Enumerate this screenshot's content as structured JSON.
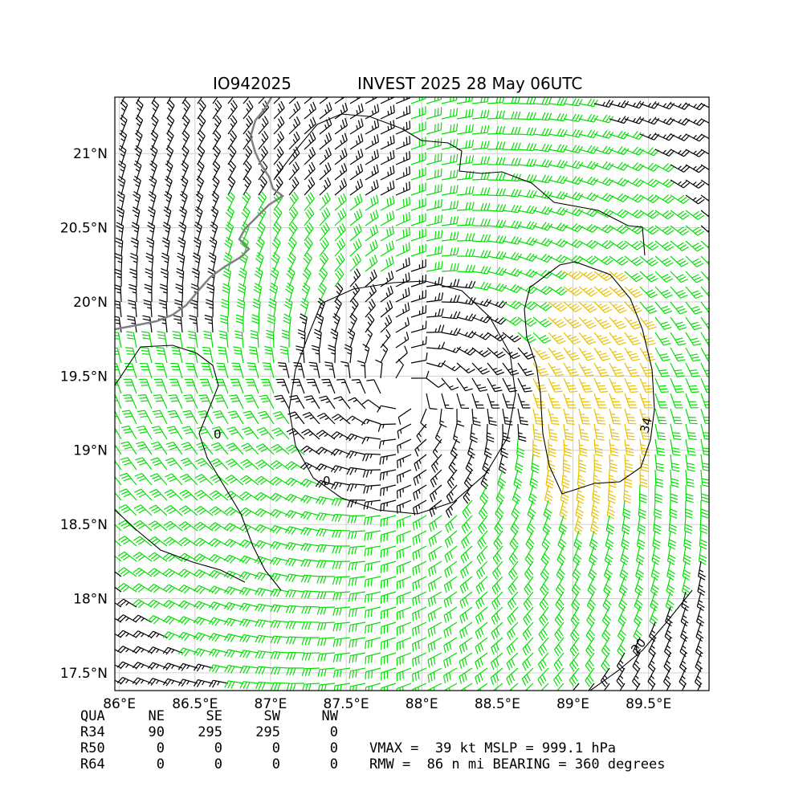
{
  "title": {
    "storm_id": "IO942025",
    "description": "INVEST 2025 28 May 06UTC"
  },
  "map": {
    "lon_range": [
      85.97,
      89.9
    ],
    "lat_range": [
      17.38,
      21.38
    ],
    "x_ticks": [
      "86°E",
      "86.5°E",
      "87°E",
      "87.5°E",
      "88°E",
      "88.5°E",
      "89°E",
      "89.5°E"
    ],
    "y_ticks": [
      "17.5°N",
      "18°N",
      "18.5°N",
      "19°N",
      "19.5°N",
      "20°N",
      "20.5°N",
      "21°N"
    ],
    "center": {
      "lon": 87.9,
      "lat": 19.4
    },
    "colors": {
      "barb_low": "#000000",
      "barb_34kt": "#00e000",
      "barb_50kt": "#e8c000",
      "coastline": "#808080",
      "contour": "#000000",
      "grid": "#d0d0d0"
    },
    "contour_labels": [
      "34",
      "20",
      "0",
      "0"
    ]
  },
  "wind_radii": {
    "header": [
      "QUA",
      "NE",
      "SE",
      "SW",
      "NW"
    ],
    "rows": [
      [
        "R34",
        "90",
        "295",
        "295",
        "0"
      ],
      [
        "R50",
        "0",
        "0",
        "0",
        "0"
      ],
      [
        "R64",
        "0",
        "0",
        "0",
        "0"
      ]
    ]
  },
  "stats": {
    "line1": "VMAX =  39 kt MSLP = 999.1 hPa",
    "line2": "RMW =  86 n mi BEARING = 360 degrees"
  }
}
